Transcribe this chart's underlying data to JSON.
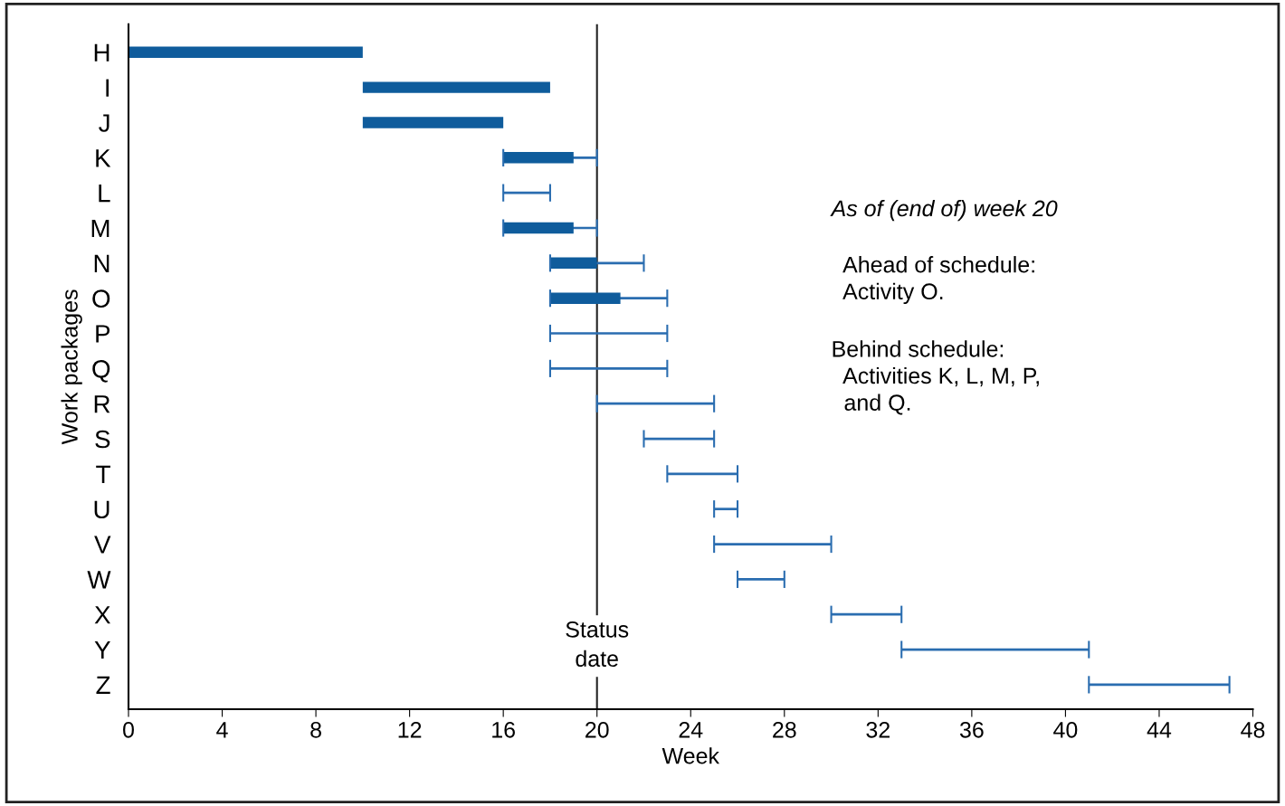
{
  "chart_data": {
    "type": "bar",
    "orientation": "horizontal",
    "xlabel": "Week",
    "ylabel": "Work packages",
    "categories": [
      "H",
      "I",
      "J",
      "K",
      "L",
      "M",
      "N",
      "O",
      "P",
      "Q",
      "R",
      "S",
      "T",
      "U",
      "V",
      "W",
      "X",
      "Y",
      "Z"
    ],
    "series": [
      {
        "color": "#2a6db0",
        "base": [
          null,
          null,
          null,
          16,
          16,
          16,
          18,
          18,
          18,
          18,
          20,
          22,
          23,
          25,
          25,
          26,
          30,
          33,
          41
        ],
        "values": [
          null,
          null,
          null,
          4,
          2,
          4,
          4,
          5,
          5,
          5,
          5,
          3,
          3,
          1,
          5,
          2,
          3,
          8,
          6
        ]
      },
      {
        "color": "#0f5c9c",
        "base": [
          0,
          10,
          10,
          16,
          null,
          16,
          18,
          18,
          null,
          null,
          null,
          null,
          null,
          null,
          null,
          null,
          null,
          null,
          null
        ],
        "values": [
          10,
          8,
          6,
          3,
          null,
          3,
          2,
          3,
          null,
          null,
          null,
          null,
          null,
          null,
          null,
          null,
          null,
          null,
          null
        ]
      }
    ],
    "xlim": [
      0,
      48
    ],
    "xticks": [
      0,
      4,
      8,
      12,
      16,
      20,
      24,
      28,
      32,
      36,
      40,
      44,
      48
    ],
    "ref_lines": [
      {
        "axis": "x",
        "value": 20,
        "label": "Status\ndate",
        "color": "#222222"
      }
    ],
    "annotations": [
      "As of (end of) week 20",
      "  Ahead of schedule:\n  Activity O.",
      "Behind schedule:\n  Activities K, L, M, P,\n  and Q."
    ],
    "grid": false,
    "legend": false
  }
}
